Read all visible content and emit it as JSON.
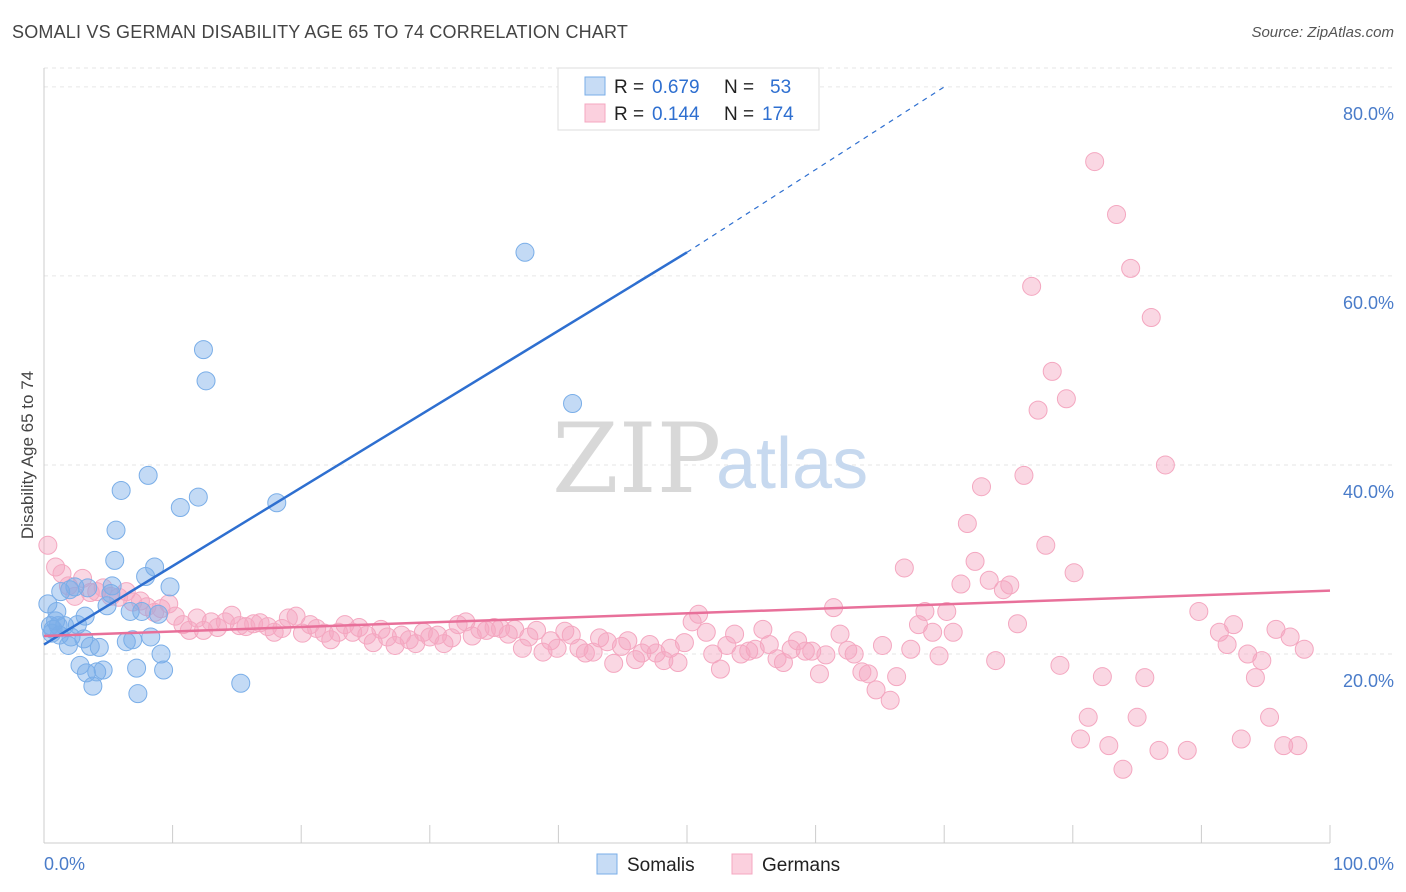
{
  "title": "SOMALI VS GERMAN DISABILITY AGE 65 TO 74 CORRELATION CHART",
  "source": "Source: ZipAtlas.com",
  "colors": {
    "somali": "#7aaee8",
    "somali_line": "#2e6fd0",
    "german": "#f4a7c0",
    "german_line": "#e8709a",
    "tick": "#4a7cc9"
  },
  "legend": {
    "r_label": "R =",
    "n_label": "N =",
    "somali": {
      "r": "0.679",
      "n": "53"
    },
    "german": {
      "r": "0.144",
      "n": "174"
    }
  },
  "bottom_legend": {
    "somali": "Somalis",
    "german": "Germans"
  },
  "watermark": {
    "zip": "ZIP",
    "atlas": "atlas"
  },
  "chart_data": {
    "type": "scatter",
    "ylabel": "Disability Age 65 to 74",
    "xlim": [
      0,
      100
    ],
    "ylim": [
      0,
      82
    ],
    "x_tick_labels": [
      "0.0%",
      "100.0%"
    ],
    "y_ticks": [
      20,
      40,
      60,
      80
    ],
    "y_tick_labels": [
      "20.0%",
      "40.0%",
      "60.0%",
      "80.0%"
    ],
    "grid": true,
    "series": [
      {
        "name": "Somalis",
        "trend": {
          "x1": 0,
          "y1": 21,
          "x2": 50,
          "y2": 62.5,
          "dash_to_x": 70,
          "dash_to_y": 80
        },
        "points": [
          [
            0.3,
            25.3
          ],
          [
            0.5,
            23
          ],
          [
            0.7,
            22.6
          ],
          [
            0.9,
            23.5
          ],
          [
            1.1,
            23
          ],
          [
            1.2,
            22
          ],
          [
            1.3,
            26.6
          ],
          [
            1.6,
            23
          ],
          [
            1.9,
            20.9
          ],
          [
            2.1,
            21.8
          ],
          [
            2.4,
            27.1
          ],
          [
            2.6,
            23.1
          ],
          [
            2.8,
            18.8
          ],
          [
            3.1,
            21.6
          ],
          [
            3.3,
            18
          ],
          [
            3.4,
            27
          ],
          [
            3.6,
            20.8
          ],
          [
            3.8,
            16.6
          ],
          [
            4.1,
            18.1
          ],
          [
            4.3,
            20.7
          ],
          [
            4.6,
            18.3
          ],
          [
            4.9,
            25.1
          ],
          [
            5.2,
            26.4
          ],
          [
            5.3,
            27.2
          ],
          [
            5.5,
            29.9
          ],
          [
            5.6,
            33.1
          ],
          [
            6.0,
            37.3
          ],
          [
            6.4,
            21.3
          ],
          [
            6.7,
            24.5
          ],
          [
            6.9,
            21.5
          ],
          [
            7.2,
            18.5
          ],
          [
            7.3,
            15.8
          ],
          [
            7.6,
            24.5
          ],
          [
            7.9,
            28.2
          ],
          [
            8.1,
            38.9
          ],
          [
            8.3,
            21.8
          ],
          [
            8.6,
            29.2
          ],
          [
            8.9,
            24.2
          ],
          [
            9.1,
            20
          ],
          [
            9.3,
            18.3
          ],
          [
            9.8,
            27.1
          ],
          [
            10.6,
            35.5
          ],
          [
            12.0,
            36.6
          ],
          [
            12.4,
            52.2
          ],
          [
            12.6,
            48.9
          ],
          [
            15.3,
            16.9
          ],
          [
            18.1,
            36
          ],
          [
            37.4,
            62.5
          ],
          [
            41.1,
            46.5
          ],
          [
            1.0,
            24.5
          ],
          [
            2.0,
            26.8
          ],
          [
            3.2,
            24.0
          ],
          [
            0.6,
            22.2
          ]
        ]
      },
      {
        "name": "Germans",
        "trend": {
          "x1": 0,
          "y1": 21.9,
          "x2": 100,
          "y2": 26.7
        },
        "points": [
          [
            0.3,
            31.5
          ],
          [
            0.9,
            29.2
          ],
          [
            1.4,
            28.5
          ],
          [
            1.9,
            27.2
          ],
          [
            2.4,
            26.1
          ],
          [
            3.0,
            28.0
          ],
          [
            3.6,
            26.5
          ],
          [
            4.1,
            26.6
          ],
          [
            4.6,
            27.0
          ],
          [
            5.2,
            26.1
          ],
          [
            5.8,
            26.0
          ],
          [
            6.4,
            26.6
          ],
          [
            6.9,
            25.5
          ],
          [
            7.5,
            25.6
          ],
          [
            8.0,
            25.0
          ],
          [
            8.6,
            24.4
          ],
          [
            9.1,
            24.8
          ],
          [
            9.7,
            25.3
          ],
          [
            10.2,
            24.0
          ],
          [
            10.8,
            23.1
          ],
          [
            11.3,
            22.5
          ],
          [
            11.9,
            23.8
          ],
          [
            12.4,
            22.5
          ],
          [
            13.0,
            23.4
          ],
          [
            13.5,
            22.8
          ],
          [
            14.1,
            23.4
          ],
          [
            14.6,
            24.1
          ],
          [
            15.2,
            23.0
          ],
          [
            15.7,
            22.9
          ],
          [
            16.3,
            23.2
          ],
          [
            16.8,
            23.3
          ],
          [
            17.4,
            22.9
          ],
          [
            17.9,
            22.3
          ],
          [
            18.5,
            22.7
          ],
          [
            19.0,
            23.8
          ],
          [
            19.6,
            24.0
          ],
          [
            20.1,
            22.2
          ],
          [
            20.7,
            23.1
          ],
          [
            21.2,
            22.7
          ],
          [
            21.8,
            22.2
          ],
          [
            22.3,
            21.5
          ],
          [
            22.9,
            22.3
          ],
          [
            23.4,
            23.1
          ],
          [
            24.0,
            22.3
          ],
          [
            24.5,
            22.8
          ],
          [
            25.1,
            22.0
          ],
          [
            25.6,
            21.2
          ],
          [
            26.2,
            22.6
          ],
          [
            26.7,
            21.8
          ],
          [
            27.3,
            20.9
          ],
          [
            27.8,
            22.0
          ],
          [
            28.4,
            21.5
          ],
          [
            28.9,
            21.1
          ],
          [
            29.5,
            22.3
          ],
          [
            30.0,
            21.8
          ],
          [
            30.6,
            22.0
          ],
          [
            31.1,
            21.1
          ],
          [
            31.7,
            21.7
          ],
          [
            32.2,
            23.1
          ],
          [
            32.8,
            23.4
          ],
          [
            33.3,
            21.9
          ],
          [
            33.9,
            22.6
          ],
          [
            34.4,
            22.5
          ],
          [
            35.0,
            22.8
          ],
          [
            35.5,
            22.7
          ],
          [
            36.1,
            22.1
          ],
          [
            36.6,
            22.6
          ],
          [
            37.2,
            20.6
          ],
          [
            37.7,
            21.8
          ],
          [
            38.3,
            22.5
          ],
          [
            38.8,
            20.2
          ],
          [
            39.4,
            21.4
          ],
          [
            39.9,
            20.6
          ],
          [
            40.5,
            22.4
          ],
          [
            41.0,
            22.0
          ],
          [
            41.6,
            20.6
          ],
          [
            42.1,
            20.1
          ],
          [
            42.7,
            20.2
          ],
          [
            43.2,
            21.7
          ],
          [
            43.8,
            21.3
          ],
          [
            44.3,
            19.0
          ],
          [
            44.9,
            20.8
          ],
          [
            45.4,
            21.4
          ],
          [
            46.0,
            19.4
          ],
          [
            46.5,
            20.1
          ],
          [
            47.1,
            21.0
          ],
          [
            47.6,
            20.1
          ],
          [
            48.2,
            19.3
          ],
          [
            48.7,
            20.6
          ],
          [
            49.3,
            19.1
          ],
          [
            49.8,
            21.2
          ],
          [
            50.4,
            23.4
          ],
          [
            50.9,
            24.2
          ],
          [
            51.5,
            22.3
          ],
          [
            52.0,
            20.0
          ],
          [
            52.6,
            18.4
          ],
          [
            53.1,
            20.9
          ],
          [
            53.7,
            22.1
          ],
          [
            54.2,
            20.0
          ],
          [
            54.8,
            20.3
          ],
          [
            55.3,
            20.5
          ],
          [
            55.9,
            22.6
          ],
          [
            56.4,
            21.0
          ],
          [
            57.0,
            19.5
          ],
          [
            57.5,
            19.1
          ],
          [
            58.1,
            20.5
          ],
          [
            58.6,
            21.4
          ],
          [
            59.2,
            20.3
          ],
          [
            59.7,
            20.3
          ],
          [
            60.3,
            17.9
          ],
          [
            60.8,
            19.9
          ],
          [
            61.4,
            24.9
          ],
          [
            61.9,
            22.1
          ],
          [
            62.5,
            20.4
          ],
          [
            63.0,
            20.0
          ],
          [
            63.6,
            18.1
          ],
          [
            64.1,
            17.9
          ],
          [
            64.7,
            16.2
          ],
          [
            65.2,
            20.9
          ],
          [
            65.8,
            15.1
          ],
          [
            66.3,
            17.6
          ],
          [
            66.9,
            29.1
          ],
          [
            67.4,
            20.5
          ],
          [
            68.0,
            23.1
          ],
          [
            68.5,
            24.5
          ],
          [
            69.1,
            22.3
          ],
          [
            69.6,
            19.8
          ],
          [
            70.2,
            24.5
          ],
          [
            70.7,
            22.3
          ],
          [
            71.3,
            27.4
          ],
          [
            71.8,
            33.8
          ],
          [
            72.4,
            29.8
          ],
          [
            72.9,
            37.7
          ],
          [
            73.5,
            27.8
          ],
          [
            74.0,
            19.3
          ],
          [
            74.6,
            26.8
          ],
          [
            75.1,
            27.3
          ],
          [
            75.7,
            23.2
          ],
          [
            76.2,
            38.9
          ],
          [
            76.8,
            58.9
          ],
          [
            77.3,
            45.8
          ],
          [
            77.9,
            31.5
          ],
          [
            78.4,
            49.9
          ],
          [
            79.0,
            18.8
          ],
          [
            79.5,
            47.0
          ],
          [
            80.1,
            28.6
          ],
          [
            80.6,
            11.0
          ],
          [
            81.2,
            13.3
          ],
          [
            81.7,
            72.1
          ],
          [
            82.3,
            17.6
          ],
          [
            82.8,
            10.3
          ],
          [
            83.4,
            66.5
          ],
          [
            83.9,
            7.8
          ],
          [
            84.5,
            60.8
          ],
          [
            85.0,
            13.3
          ],
          [
            85.6,
            17.5
          ],
          [
            86.1,
            55.6
          ],
          [
            86.7,
            9.8
          ],
          [
            87.2,
            40.0
          ],
          [
            88.9,
            9.8
          ],
          [
            89.8,
            24.5
          ],
          [
            91.4,
            22.3
          ],
          [
            92.0,
            21.0
          ],
          [
            92.5,
            23.1
          ],
          [
            93.1,
            11.0
          ],
          [
            93.6,
            20.0
          ],
          [
            94.2,
            17.5
          ],
          [
            94.7,
            19.3
          ],
          [
            95.3,
            13.3
          ],
          [
            95.8,
            22.6
          ],
          [
            96.4,
            10.3
          ],
          [
            96.9,
            21.8
          ],
          [
            97.5,
            10.3
          ],
          [
            98.0,
            20.5
          ]
        ]
      }
    ]
  }
}
